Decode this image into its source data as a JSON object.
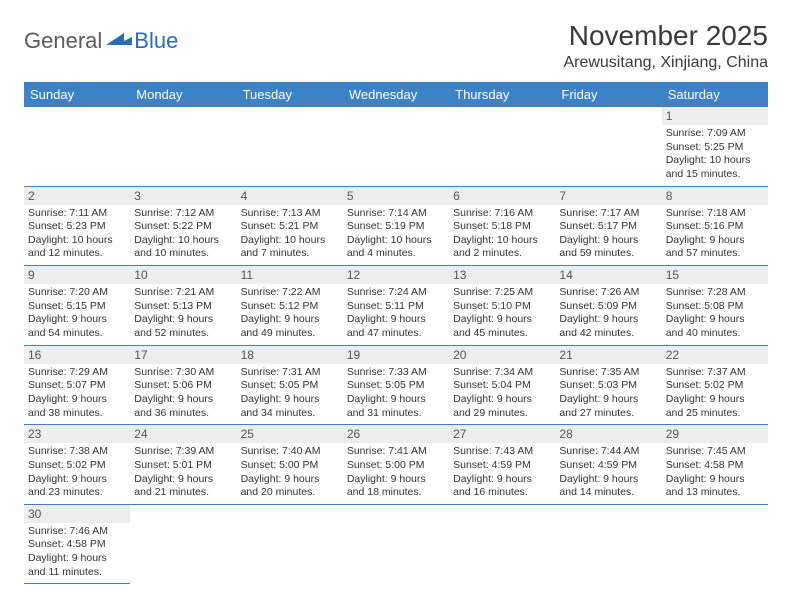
{
  "logo": {
    "general": "General",
    "blue": "Blue"
  },
  "title": "November 2025",
  "location": "Arewusitang, Xinjiang, China",
  "dayHeaders": [
    "Sunday",
    "Monday",
    "Tuesday",
    "Wednesday",
    "Thursday",
    "Friday",
    "Saturday"
  ],
  "colors": {
    "headerBg": "#3d82c4",
    "headerText": "#ffffff",
    "dayNumBg": "#ededed",
    "border": "#3d82c4",
    "logoBlue": "#2a6db3",
    "logoGray": "#5a5a5a"
  },
  "weeks": [
    [
      null,
      null,
      null,
      null,
      null,
      null,
      {
        "n": "1",
        "sr": "Sunrise: 7:09 AM",
        "ss": "Sunset: 5:25 PM",
        "d1": "Daylight: 10 hours",
        "d2": "and 15 minutes."
      }
    ],
    [
      {
        "n": "2",
        "sr": "Sunrise: 7:11 AM",
        "ss": "Sunset: 5:23 PM",
        "d1": "Daylight: 10 hours",
        "d2": "and 12 minutes."
      },
      {
        "n": "3",
        "sr": "Sunrise: 7:12 AM",
        "ss": "Sunset: 5:22 PM",
        "d1": "Daylight: 10 hours",
        "d2": "and 10 minutes."
      },
      {
        "n": "4",
        "sr": "Sunrise: 7:13 AM",
        "ss": "Sunset: 5:21 PM",
        "d1": "Daylight: 10 hours",
        "d2": "and 7 minutes."
      },
      {
        "n": "5",
        "sr": "Sunrise: 7:14 AM",
        "ss": "Sunset: 5:19 PM",
        "d1": "Daylight: 10 hours",
        "d2": "and 4 minutes."
      },
      {
        "n": "6",
        "sr": "Sunrise: 7:16 AM",
        "ss": "Sunset: 5:18 PM",
        "d1": "Daylight: 10 hours",
        "d2": "and 2 minutes."
      },
      {
        "n": "7",
        "sr": "Sunrise: 7:17 AM",
        "ss": "Sunset: 5:17 PM",
        "d1": "Daylight: 9 hours",
        "d2": "and 59 minutes."
      },
      {
        "n": "8",
        "sr": "Sunrise: 7:18 AM",
        "ss": "Sunset: 5:16 PM",
        "d1": "Daylight: 9 hours",
        "d2": "and 57 minutes."
      }
    ],
    [
      {
        "n": "9",
        "sr": "Sunrise: 7:20 AM",
        "ss": "Sunset: 5:15 PM",
        "d1": "Daylight: 9 hours",
        "d2": "and 54 minutes."
      },
      {
        "n": "10",
        "sr": "Sunrise: 7:21 AM",
        "ss": "Sunset: 5:13 PM",
        "d1": "Daylight: 9 hours",
        "d2": "and 52 minutes."
      },
      {
        "n": "11",
        "sr": "Sunrise: 7:22 AM",
        "ss": "Sunset: 5:12 PM",
        "d1": "Daylight: 9 hours",
        "d2": "and 49 minutes."
      },
      {
        "n": "12",
        "sr": "Sunrise: 7:24 AM",
        "ss": "Sunset: 5:11 PM",
        "d1": "Daylight: 9 hours",
        "d2": "and 47 minutes."
      },
      {
        "n": "13",
        "sr": "Sunrise: 7:25 AM",
        "ss": "Sunset: 5:10 PM",
        "d1": "Daylight: 9 hours",
        "d2": "and 45 minutes."
      },
      {
        "n": "14",
        "sr": "Sunrise: 7:26 AM",
        "ss": "Sunset: 5:09 PM",
        "d1": "Daylight: 9 hours",
        "d2": "and 42 minutes."
      },
      {
        "n": "15",
        "sr": "Sunrise: 7:28 AM",
        "ss": "Sunset: 5:08 PM",
        "d1": "Daylight: 9 hours",
        "d2": "and 40 minutes."
      }
    ],
    [
      {
        "n": "16",
        "sr": "Sunrise: 7:29 AM",
        "ss": "Sunset: 5:07 PM",
        "d1": "Daylight: 9 hours",
        "d2": "and 38 minutes."
      },
      {
        "n": "17",
        "sr": "Sunrise: 7:30 AM",
        "ss": "Sunset: 5:06 PM",
        "d1": "Daylight: 9 hours",
        "d2": "and 36 minutes."
      },
      {
        "n": "18",
        "sr": "Sunrise: 7:31 AM",
        "ss": "Sunset: 5:05 PM",
        "d1": "Daylight: 9 hours",
        "d2": "and 34 minutes."
      },
      {
        "n": "19",
        "sr": "Sunrise: 7:33 AM",
        "ss": "Sunset: 5:05 PM",
        "d1": "Daylight: 9 hours",
        "d2": "and 31 minutes."
      },
      {
        "n": "20",
        "sr": "Sunrise: 7:34 AM",
        "ss": "Sunset: 5:04 PM",
        "d1": "Daylight: 9 hours",
        "d2": "and 29 minutes."
      },
      {
        "n": "21",
        "sr": "Sunrise: 7:35 AM",
        "ss": "Sunset: 5:03 PM",
        "d1": "Daylight: 9 hours",
        "d2": "and 27 minutes."
      },
      {
        "n": "22",
        "sr": "Sunrise: 7:37 AM",
        "ss": "Sunset: 5:02 PM",
        "d1": "Daylight: 9 hours",
        "d2": "and 25 minutes."
      }
    ],
    [
      {
        "n": "23",
        "sr": "Sunrise: 7:38 AM",
        "ss": "Sunset: 5:02 PM",
        "d1": "Daylight: 9 hours",
        "d2": "and 23 minutes."
      },
      {
        "n": "24",
        "sr": "Sunrise: 7:39 AM",
        "ss": "Sunset: 5:01 PM",
        "d1": "Daylight: 9 hours",
        "d2": "and 21 minutes."
      },
      {
        "n": "25",
        "sr": "Sunrise: 7:40 AM",
        "ss": "Sunset: 5:00 PM",
        "d1": "Daylight: 9 hours",
        "d2": "and 20 minutes."
      },
      {
        "n": "26",
        "sr": "Sunrise: 7:41 AM",
        "ss": "Sunset: 5:00 PM",
        "d1": "Daylight: 9 hours",
        "d2": "and 18 minutes."
      },
      {
        "n": "27",
        "sr": "Sunrise: 7:43 AM",
        "ss": "Sunset: 4:59 PM",
        "d1": "Daylight: 9 hours",
        "d2": "and 16 minutes."
      },
      {
        "n": "28",
        "sr": "Sunrise: 7:44 AM",
        "ss": "Sunset: 4:59 PM",
        "d1": "Daylight: 9 hours",
        "d2": "and 14 minutes."
      },
      {
        "n": "29",
        "sr": "Sunrise: 7:45 AM",
        "ss": "Sunset: 4:58 PM",
        "d1": "Daylight: 9 hours",
        "d2": "and 13 minutes."
      }
    ],
    [
      {
        "n": "30",
        "sr": "Sunrise: 7:46 AM",
        "ss": "Sunset: 4:58 PM",
        "d1": "Daylight: 9 hours",
        "d2": "and 11 minutes."
      },
      null,
      null,
      null,
      null,
      null,
      null
    ]
  ]
}
